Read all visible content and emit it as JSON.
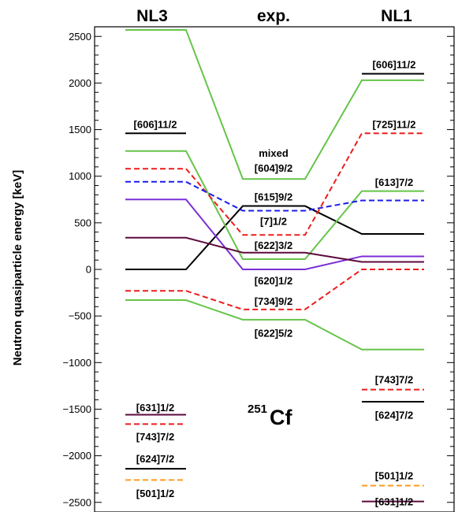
{
  "colors": {
    "black": "#000000",
    "green": "#66c44a",
    "red": "#ee1c1c",
    "blue": "#1c1cee",
    "purple": "#7a2ed6",
    "maroon": "#5c0a3c",
    "orange": "#ff9a1c"
  },
  "chart_data": {
    "type": "level-scheme",
    "columns": [
      "NL3",
      "exp.",
      "NL1"
    ],
    "ylabel": "Neutron  quasiparticle energy  [keV]",
    "ylim": [
      -2550,
      2600
    ],
    "yticks": [
      -2500,
      -2000,
      -1500,
      -1000,
      -500,
      0,
      500,
      1000,
      1500,
      2000,
      2500
    ],
    "ytick_labels": [
      "−2500",
      "−2000",
      "−1500",
      "−1000",
      "−500",
      "0",
      "500",
      "1000",
      "1500",
      "2000",
      "2500"
    ],
    "nucleus": {
      "mass": "251",
      "symbol": "Cf"
    },
    "levels": [
      {
        "id": "black-620",
        "color": "black",
        "dash": false,
        "values": [
          0,
          680,
          380
        ]
      },
      {
        "id": "green-top",
        "color": "green",
        "dash": false,
        "values": [
          2570,
          970,
          2030
        ]
      },
      {
        "id": "green-mid",
        "color": "green",
        "dash": false,
        "values": [
          1270,
          110,
          840
        ]
      },
      {
        "id": "green-low",
        "color": "green",
        "dash": false,
        "values": [
          -330,
          -540,
          -860
        ]
      },
      {
        "id": "red-mid",
        "color": "red",
        "dash": true,
        "values": [
          1080,
          370,
          1460
        ]
      },
      {
        "id": "red-low",
        "color": "red",
        "dash": true,
        "values": [
          -230,
          -430,
          0
        ]
      },
      {
        "id": "blue",
        "color": "blue",
        "dash": true,
        "values": [
          940,
          630,
          740
        ]
      },
      {
        "id": "purple",
        "color": "purple",
        "dash": false,
        "values": [
          750,
          0,
          140
        ]
      },
      {
        "id": "maroon",
        "color": "maroon",
        "dash": false,
        "values": [
          340,
          180,
          80
        ]
      }
    ],
    "side_levels": [
      {
        "id": "nl3-606",
        "column": "NL3",
        "color": "black",
        "dash": false,
        "value": 1460
      },
      {
        "id": "nl3-631",
        "column": "NL3",
        "color": "maroon",
        "dash": false,
        "value": -1560
      },
      {
        "id": "nl3-743",
        "column": "NL3",
        "color": "red",
        "dash": true,
        "value": -1660
      },
      {
        "id": "nl3-624",
        "column": "NL3",
        "color": "black",
        "dash": false,
        "value": -2140
      },
      {
        "id": "nl3-501",
        "column": "NL3",
        "color": "orange",
        "dash": true,
        "value": -2260
      },
      {
        "id": "nl1-606",
        "column": "NL1",
        "color": "black",
        "dash": false,
        "value": 2100
      },
      {
        "id": "nl1-743",
        "column": "NL1",
        "color": "red",
        "dash": true,
        "value": -1290
      },
      {
        "id": "nl1-624",
        "column": "NL1",
        "color": "black",
        "dash": false,
        "value": -1420
      },
      {
        "id": "nl1-501",
        "column": "NL1",
        "color": "orange",
        "dash": true,
        "value": -2320
      },
      {
        "id": "nl1-631",
        "column": "NL1",
        "color": "maroon",
        "dash": false,
        "value": -2490
      }
    ],
    "labels": [
      {
        "text": "[606]11/2",
        "column": "NL3",
        "value": 1560
      },
      {
        "text": "[631]1/2",
        "column": "NL3",
        "value": -1480
      },
      {
        "text": "[743]7/2",
        "column": "NL3",
        "value": -1790
      },
      {
        "text": "[624]7/2",
        "column": "NL3",
        "value": -2030
      },
      {
        "text": "[501]1/2",
        "column": "NL3",
        "value": -2400
      },
      {
        "text": "mixed",
        "column": "exp.",
        "value": 1250
      },
      {
        "text": "[604]9/2",
        "column": "exp.",
        "value": 1090
      },
      {
        "text": "[615]9/2",
        "column": "exp.",
        "value": 780
      },
      {
        "text": "[7]1/2",
        "column": "exp.",
        "value": 520
      },
      {
        "text": "[622]3/2",
        "column": "exp.",
        "value": 260
      },
      {
        "text": "[620]1/2",
        "column": "exp.",
        "value": -120
      },
      {
        "text": "[734]9/2",
        "column": "exp.",
        "value": -340
      },
      {
        "text": "[622]5/2",
        "column": "exp.",
        "value": -680
      },
      {
        "text": "[606]11/2",
        "column": "NL1",
        "value": 2200
      },
      {
        "text": "[725]11/2",
        "column": "NL1",
        "value": 1560
      },
      {
        "text": "[613]7/2",
        "column": "NL1",
        "value": 940
      },
      {
        "text": "[743]7/2",
        "column": "NL1",
        "value": -1180
      },
      {
        "text": "[624]7/2",
        "column": "NL1",
        "value": -1560
      },
      {
        "text": "[501]1/2",
        "column": "NL1",
        "value": -2210
      },
      {
        "text": "[631]1/2",
        "column": "NL1",
        "value": -2490
      }
    ]
  }
}
